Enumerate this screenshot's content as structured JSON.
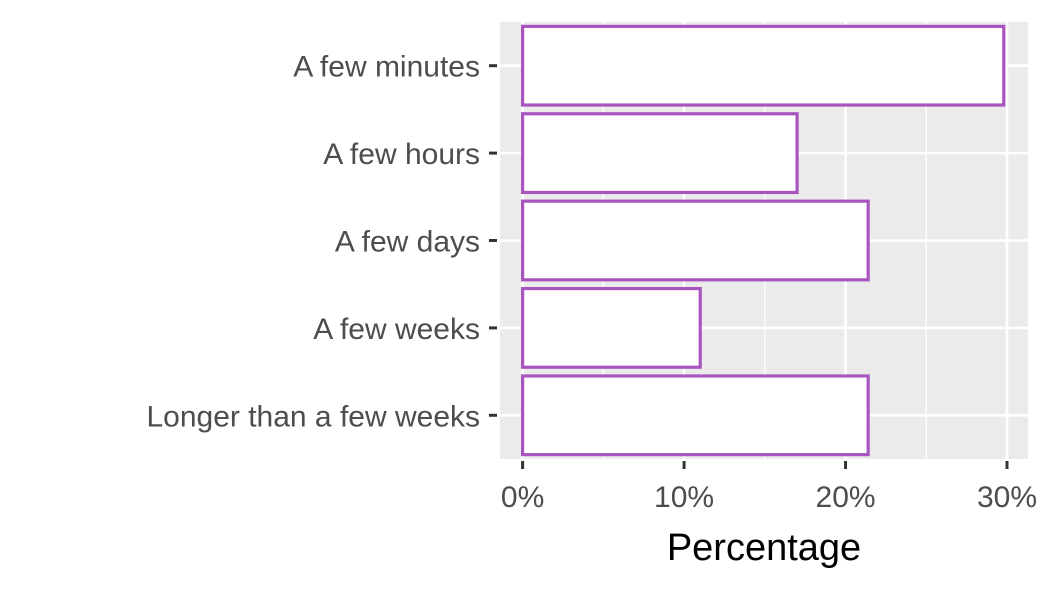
{
  "chart_data": {
    "type": "bar",
    "orientation": "horizontal",
    "categories": [
      "A few minutes",
      "A few hours",
      "A few days",
      "A few weeks",
      "Longer than a few weeks"
    ],
    "values": [
      29.8,
      17.0,
      21.4,
      11.0,
      21.4
    ],
    "x_ticks": [
      0,
      10,
      20,
      30
    ],
    "x_tick_labels": [
      "0%",
      "10%",
      "20%",
      "30%"
    ],
    "xlabel": "Percentage",
    "ylabel": "",
    "title": "",
    "xlim": [
      -1.4,
      31.3
    ],
    "grid": true,
    "legend": "none",
    "colors": {
      "panel": "#ebebeb",
      "grid": "#ffffff",
      "bar_fill": "#ffffff",
      "bar_outline": "#a855c0",
      "tick_text": "#4d4d4d",
      "tick_mark": "#333333"
    }
  }
}
